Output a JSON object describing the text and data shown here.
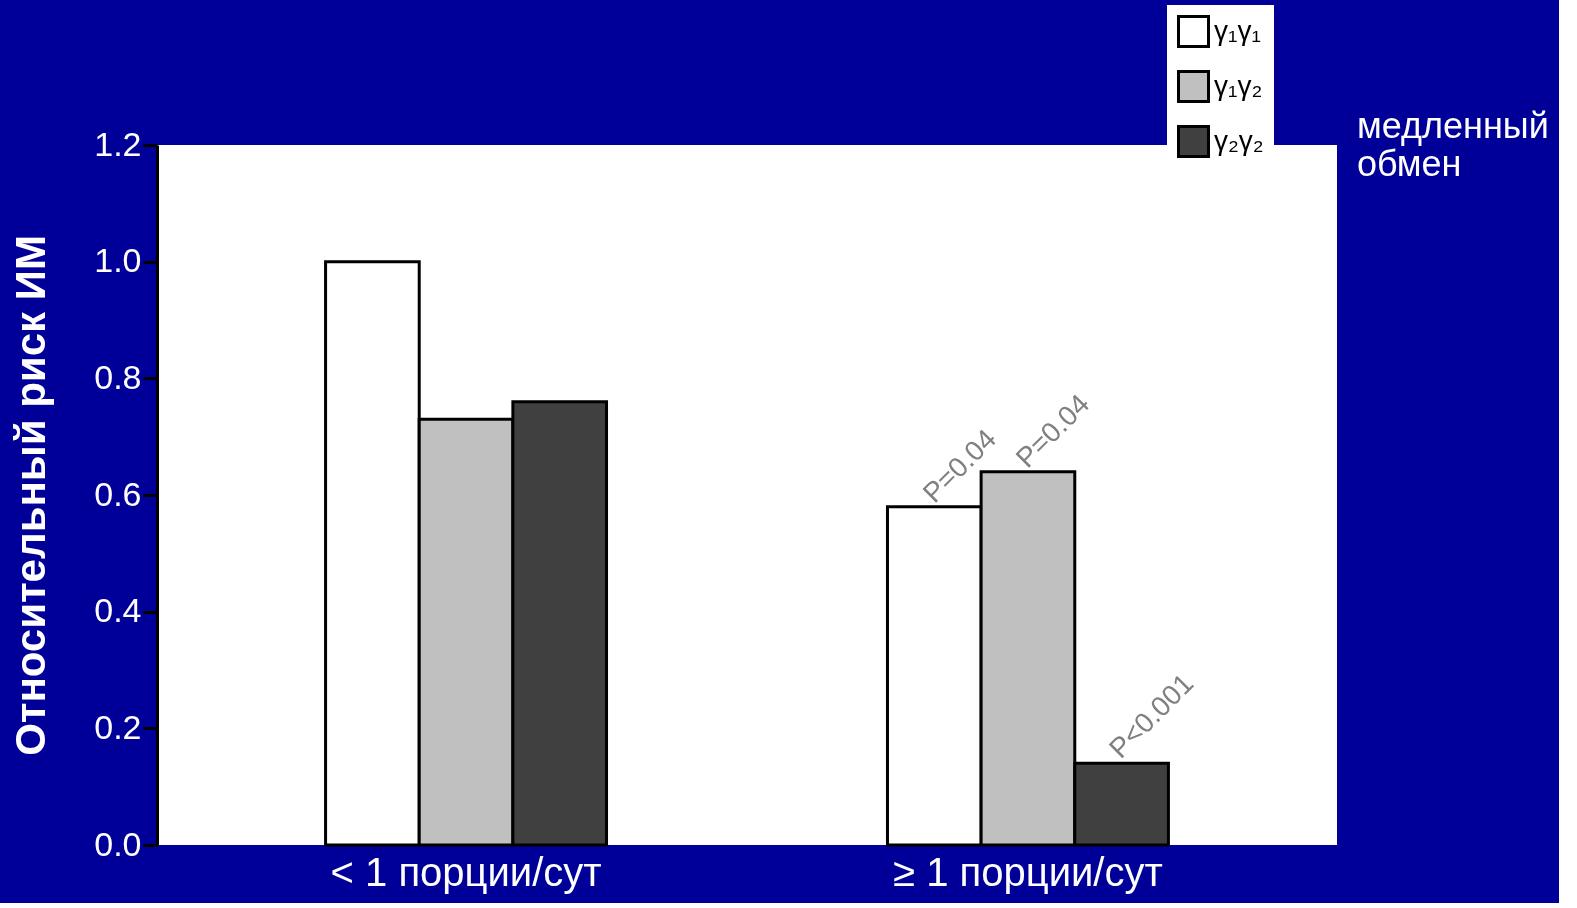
{
  "chart_data": {
    "type": "bar",
    "ylabel": "Относительный риск ИМ",
    "categories": [
      "< 1 порции/сут",
      "≥ 1 порции/сут"
    ],
    "series": [
      {
        "name": "γ₁γ₁",
        "color": "#ffffff",
        "values": [
          1.0,
          0.58
        ]
      },
      {
        "name": "γ₁γ₂",
        "color": "#c0c0c0",
        "values": [
          0.73,
          0.64
        ]
      },
      {
        "name": "γ₂γ₂",
        "color": "#404040",
        "values": [
          0.76,
          0.14
        ]
      }
    ],
    "ylim": [
      0,
      1.2
    ],
    "yticks": [
      {
        "value": 0,
        "label": "0.0"
      },
      {
        "value": 0.2,
        "label": "0.2"
      },
      {
        "value": 0.4,
        "label": "0.4"
      },
      {
        "value": 0.6,
        "label": "0.6"
      },
      {
        "value": 0.8,
        "label": "0.8"
      },
      {
        "value": 1.0,
        "label": "1.0"
      },
      {
        "value": 1.2,
        "label": "1.2"
      }
    ],
    "annotations": [
      "P=0.04",
      "P=0.04",
      "P<0.001",
      "медленный обмен"
    ],
    "legend": "top right",
    "grid": false
  }
}
